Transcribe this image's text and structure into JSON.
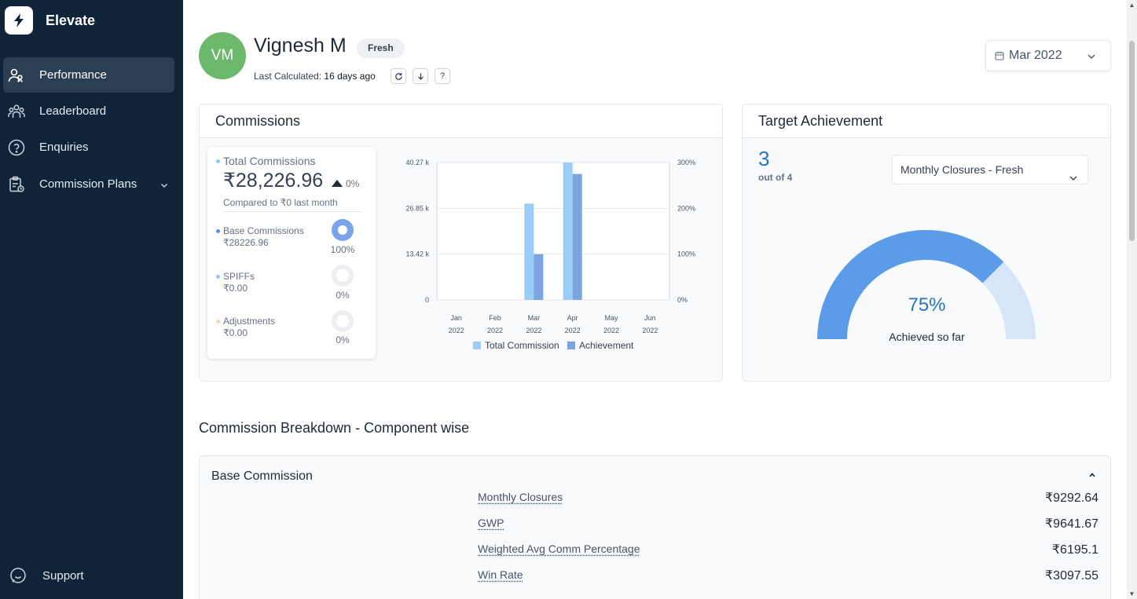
{
  "app": {
    "name": "Elevate",
    "accent": "#0f2439"
  },
  "sidebar": {
    "items": [
      {
        "label": "Performance",
        "icon": "users-icon",
        "active": true
      },
      {
        "label": "Leaderboard",
        "icon": "team-icon"
      },
      {
        "label": "Enquiries",
        "icon": "question-circle-icon"
      },
      {
        "label": "Commission Plans",
        "icon": "clipboard-icon",
        "has_submenu": true
      }
    ],
    "support_label": "Support"
  },
  "user": {
    "initials": "VM",
    "name": "Vignesh M",
    "badge": "Fresh",
    "last_calculated_label": "Last Calculated:",
    "last_calculated_value": "16 days ago",
    "actions": [
      "refresh-icon",
      "download-icon",
      "help-icon"
    ]
  },
  "period": {
    "selected": "Mar 2022"
  },
  "commissions": {
    "title": "Commissions",
    "total_label": "Total Commissions",
    "total_value": "₹28,226.96",
    "change_pct": "0%",
    "compare_text": "Compared to ₹0 last month",
    "components": [
      {
        "label": "Base Commissions",
        "amount": "₹28226.96",
        "pct": "100%",
        "fraction": 1.0,
        "color": "#5b8def"
      },
      {
        "label": "SPIFFs",
        "amount": "₹0.00",
        "pct": "0%",
        "fraction": 0,
        "color": "#93c5fd"
      },
      {
        "label": "Adjustments",
        "amount": "₹0.00",
        "pct": "0%",
        "fraction": 0,
        "color": "#f1d9a8"
      }
    ]
  },
  "chart_data": {
    "type": "bar",
    "categories": [
      [
        "Jan",
        "2022"
      ],
      [
        "Feb",
        "2022"
      ],
      [
        "Mar",
        "2022"
      ],
      [
        "Apr",
        "2022"
      ],
      [
        "May",
        "2022"
      ],
      [
        "Jun",
        "2022"
      ]
    ],
    "series": [
      {
        "name": "Total Commission",
        "axis": "left",
        "color": "#9ccdf8",
        "values": [
          0,
          0,
          28226.96,
          40270,
          0,
          0
        ]
      },
      {
        "name": "Achievement",
        "axis": "right",
        "color": "#7ba4e0",
        "values": [
          0,
          0,
          100,
          275,
          0,
          0
        ]
      }
    ],
    "y_left": {
      "ticks": [
        "0",
        "13.42 k",
        "26.85 k",
        "40.27 k"
      ],
      "range": [
        0,
        40270
      ]
    },
    "y_right": {
      "ticks": [
        "0%",
        "100%",
        "200%",
        "300%"
      ],
      "range": [
        0,
        300
      ]
    },
    "legend": "bottom",
    "grid": true
  },
  "target": {
    "title": "Target Achievement",
    "count": "3",
    "out_of": "out of 4",
    "metric_selected": "Monthly Closures - Fresh",
    "achieved_pct": "75%",
    "achieved_fraction": 0.75,
    "achieved_label": "Achieved so far",
    "gauge_color": "#5b9be8",
    "gauge_track_color": "#d6e6f8"
  },
  "breakdown": {
    "section_title": "Commission Breakdown - Component wise",
    "group_title": "Base Commission",
    "rows": [
      {
        "label": "Monthly Closures",
        "value": "₹9292.64"
      },
      {
        "label": "GWP",
        "value": "₹9641.67"
      },
      {
        "label": "Weighted Avg Comm Percentage",
        "value": "₹6195.1"
      },
      {
        "label": "Win Rate",
        "value": "₹3097.55"
      }
    ]
  }
}
